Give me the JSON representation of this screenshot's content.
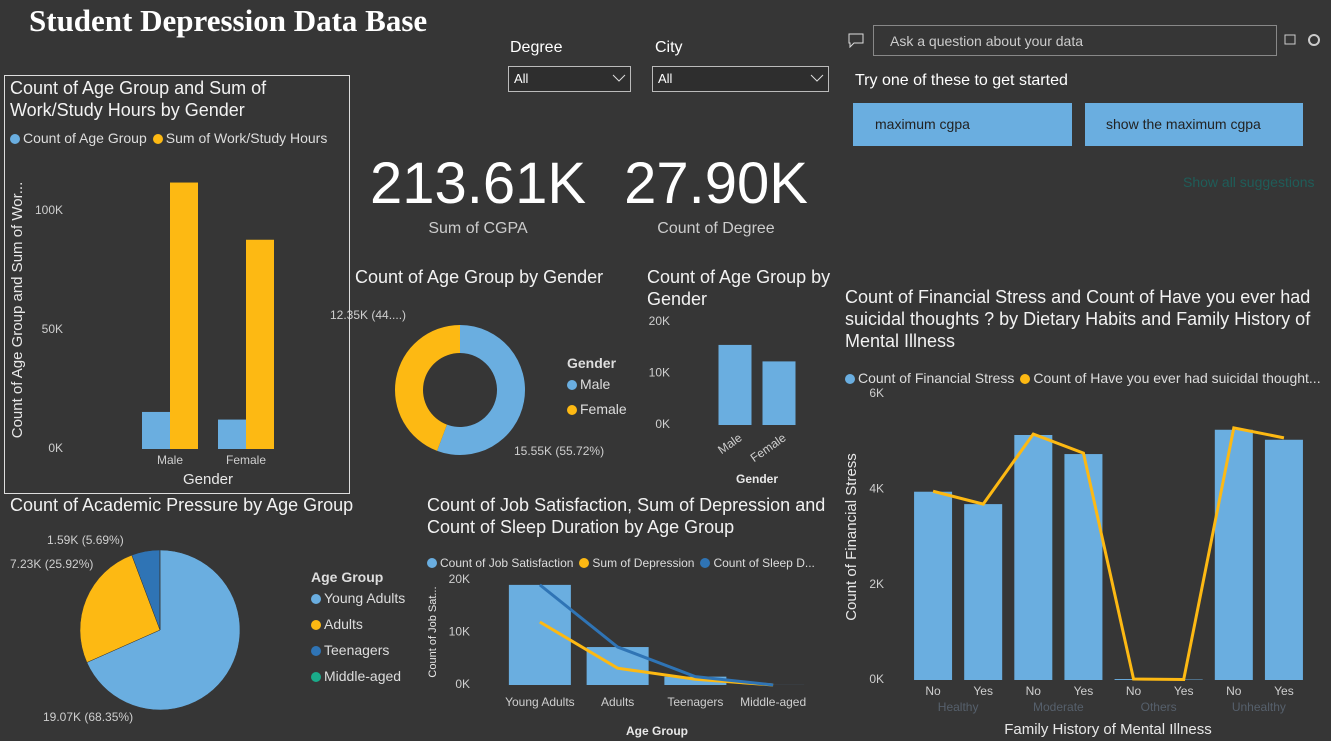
{
  "header": {
    "title": "Student Depression Data Base"
  },
  "slicers": [
    {
      "label": "Degree",
      "value": "All"
    },
    {
      "label": "City",
      "value": "All"
    }
  ],
  "cards": [
    {
      "value": "213.61K",
      "label": "Sum of CGPA"
    },
    {
      "value": "27.90K",
      "label": "Count of Degree"
    }
  ],
  "qna": {
    "placeholder": "Ask a question about your data",
    "prompt": "Try one of these to get started",
    "suggestions": [
      "maximum cgpa",
      "show the maximum cgpa"
    ],
    "show_all": "Show all suggestions"
  },
  "chart_data": [
    {
      "type": "bar",
      "title": "Count of Age Group and Sum of Work/Study Hours by Gender",
      "categories": [
        "Male",
        "Female"
      ],
      "series": [
        {
          "name": "Count of Age Group",
          "color": "#6aaee0",
          "values": [
            15550,
            12350
          ]
        },
        {
          "name": "Sum of Work/Study Hours",
          "color": "#fdb913",
          "values": [
            111800,
            87800
          ]
        }
      ],
      "ylim": [
        0,
        120000
      ],
      "yticks": [
        {
          "value": 0,
          "label": "0K"
        },
        {
          "value": 50000,
          "label": "50K"
        },
        {
          "value": 100000,
          "label": "100K"
        }
      ],
      "x_label": "Gender",
      "y_label": "Count of Age Group and Sum of Wor...",
      "grid": false
    },
    {
      "type": "donut",
      "title": "Count of Age Group by Gender",
      "legend_title": "Gender",
      "categories": [
        "Male",
        "Female"
      ],
      "colors": [
        "#6aaee0",
        "#fdb913"
      ],
      "values": [
        15550,
        12350
      ],
      "value_labels": [
        "15.55K (55.72%)",
        "12.35K (44....)"
      ]
    },
    {
      "type": "bar",
      "title": "Count of Age Group by Gender",
      "categories": [
        "Male",
        "Female"
      ],
      "values": [
        15550,
        12350
      ],
      "color": "#6aaee0",
      "ylim": [
        0,
        20000
      ],
      "yticks": [
        {
          "value": 0,
          "label": "0K"
        },
        {
          "value": 10000,
          "label": "10K"
        },
        {
          "value": 20000,
          "label": "20K"
        }
      ],
      "x_label": "Gender",
      "grid": false
    },
    {
      "type": "pie",
      "title": "Count of Academic Pressure by Age Group",
      "legend_title": "Age Group",
      "categories": [
        "Young Adults",
        "Adults",
        "Teenagers",
        "Middle-aged"
      ],
      "colors": [
        "#6aaee0",
        "#fdb913",
        "#2f74b5",
        "#1aab8a"
      ],
      "values": [
        19070,
        7230,
        1590,
        11
      ],
      "value_labels": [
        "19.07K (68.35%)",
        "7.23K (25.92%)",
        "1.59K (5.69%)",
        null
      ]
    },
    {
      "type": "combo",
      "title": "Count of Job Satisfaction, Sum of Depression and Count of Sleep Duration by Age Group",
      "categories": [
        "Young Adults",
        "Adults",
        "Teenagers",
        "Middle-aged"
      ],
      "series": [
        {
          "name": "Count of Job Satisfaction",
          "mark": "bar",
          "color": "#6aaee0",
          "values": [
            19070,
            7230,
            1590,
            11
          ]
        },
        {
          "name": "Sum of Depression",
          "mark": "line",
          "color": "#fdb913",
          "values": [
            12000,
            3200,
            1100,
            0
          ]
        },
        {
          "name": "Count of Sleep D...",
          "mark": "line",
          "color": "#2f74b5",
          "values": [
            19070,
            7230,
            1590,
            11
          ]
        }
      ],
      "ylim": [
        0,
        20000
      ],
      "yticks": [
        {
          "value": 0,
          "label": "0K"
        },
        {
          "value": 10000,
          "label": "10K"
        },
        {
          "value": 20000,
          "label": "20K"
        }
      ],
      "x_label": "Age Group",
      "y_label": "Count of Job Sat...",
      "grid": false
    },
    {
      "type": "combo",
      "title": "Count of Financial Stress and Count of Have you ever had suicidal thoughts ? by Dietary Habits and Family History of Mental Illness",
      "categories": [
        "No",
        "Yes",
        "No",
        "Yes",
        "No",
        "Yes",
        "No",
        "Yes"
      ],
      "category_groups": [
        "Healthy",
        "Moderate",
        "Others",
        "Unhealthy"
      ],
      "series": [
        {
          "name": "Count of Financial Stress",
          "mark": "bar",
          "color": "#6aaee0",
          "values": [
            3950,
            3690,
            5140,
            4740,
            20,
            10,
            5250,
            5040
          ]
        },
        {
          "name": "Count of Have you ever had suicidal thought...",
          "mark": "line",
          "color": "#fdb913",
          "values": [
            3960,
            3690,
            5160,
            4760,
            20,
            10,
            5290,
            5080
          ]
        }
      ],
      "ylim": [
        0,
        6000
      ],
      "yticks": [
        {
          "value": 0,
          "label": "0K"
        },
        {
          "value": 2000,
          "label": "2K"
        },
        {
          "value": 4000,
          "label": "4K"
        },
        {
          "value": 6000,
          "label": "6K"
        }
      ],
      "x_label": "Family History of Mental Illness",
      "y_label": "Count of Financial Stress",
      "grid": false
    }
  ]
}
